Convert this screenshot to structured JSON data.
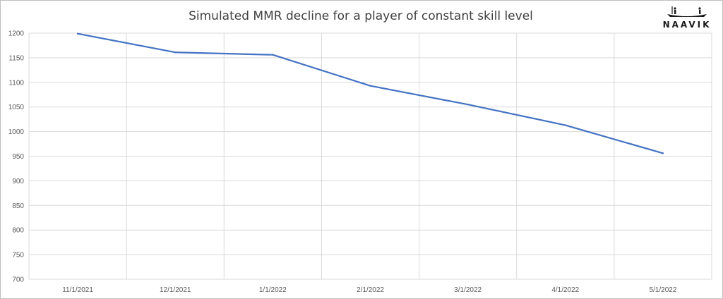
{
  "logo": {
    "text": "NAAVIK"
  },
  "chart_data": {
    "type": "line",
    "title": "Simulated MMR decline for a player of constant skill level",
    "xlabel": "",
    "ylabel": "",
    "x": [
      "11/1/2021",
      "12/1/2021",
      "1/1/2022",
      "2/1/2022",
      "3/1/2022",
      "4/1/2022",
      "5/1/2022"
    ],
    "series": [
      {
        "values": [
          1199,
          1161,
          1156,
          1093,
          1055,
          1013,
          956
        ],
        "color": "#4472c4"
      }
    ],
    "ylim": [
      700,
      1200
    ],
    "yticks": [
      700,
      750,
      800,
      850,
      900,
      950,
      1000,
      1050,
      1100,
      1150,
      1200
    ],
    "grid": "both",
    "legend": "none",
    "colors": {
      "grid": "#d9d9d9",
      "text": "#595959",
      "title": "#404040"
    }
  }
}
